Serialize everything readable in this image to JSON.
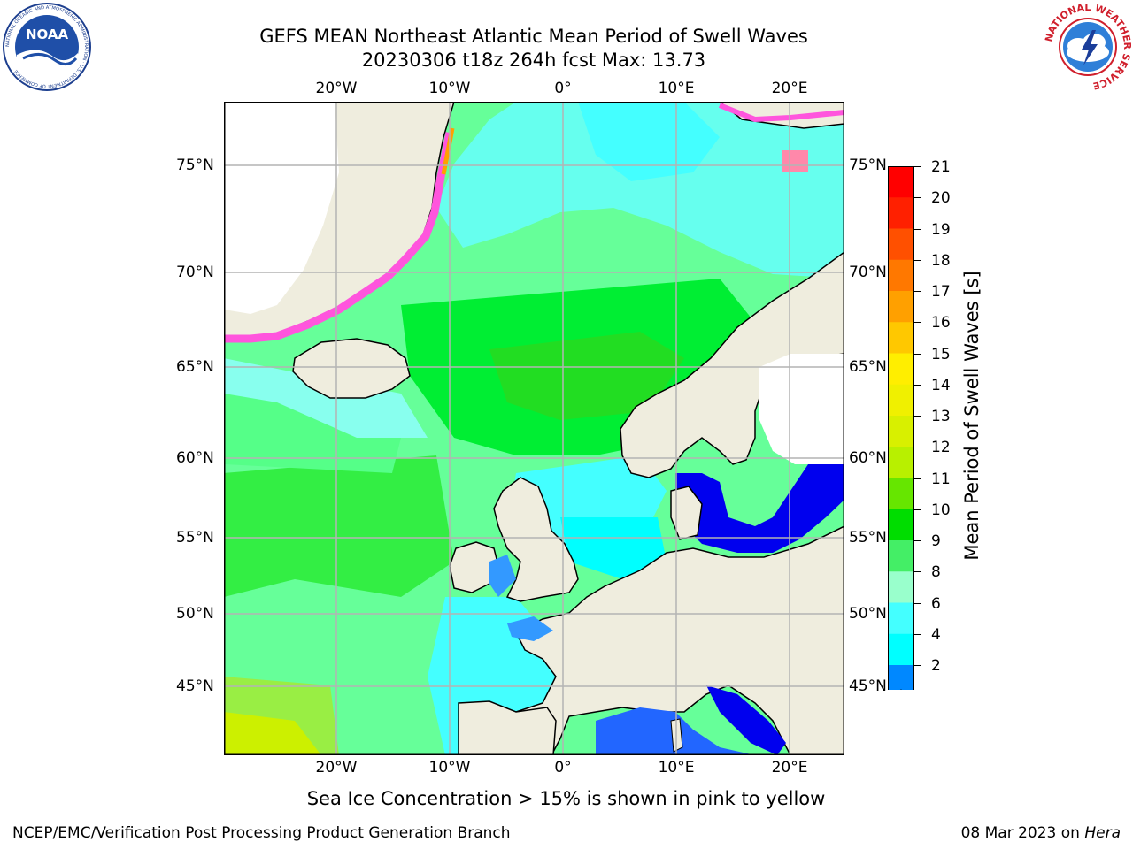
{
  "title": {
    "line1": "GEFS MEAN Northeast Atlantic Mean Period of Swell Waves",
    "line2": "20230306 t18z 264h fcst   Max: 13.73"
  },
  "logos": {
    "left_icon": "noaa-logo-icon",
    "left_text": "NOAA",
    "left_ring_text": "NATIONAL OCEANIC AND ATMOSPHERIC ADMINISTRATION · U.S. DEPARTMENT OF COMMERCE",
    "right_icon": "national-weather-service-logo-icon",
    "right_ring_text": "NATIONAL WEATHER SERVICE"
  },
  "map": {
    "lon_labels_top": [
      "20°W",
      "10°W",
      "0°",
      "10°E",
      "20°E"
    ],
    "lon_labels_bottom": [
      "20°W",
      "10°W",
      "0°",
      "10°E",
      "20°E"
    ],
    "lat_labels_left": [
      "75°N",
      "70°N",
      "65°N",
      "60°N",
      "55°N",
      "50°N",
      "45°N"
    ],
    "lat_labels_right": [
      "75°N",
      "70°N",
      "65°N",
      "60°N",
      "55°N",
      "50°N",
      "45°N"
    ],
    "land_color": "#efedde",
    "grid_color": "#b4b4b4"
  },
  "colorbar": {
    "title": "Mean Period of Swell Waves [s]",
    "tick_labels": [
      "21",
      "20",
      "19",
      "18",
      "17",
      "16",
      "15",
      "14",
      "13",
      "12",
      "11",
      "10",
      "9",
      "8",
      "6",
      "4",
      "2"
    ],
    "colors_top_to_bottom": [
      "#ff0000",
      "#ff2000",
      "#ff5000",
      "#ff7800",
      "#ffa000",
      "#ffc800",
      "#ffee00",
      "#f0f000",
      "#d8f000",
      "#b8f000",
      "#66e600",
      "#00dd00",
      "#44ee66",
      "#99ffcc",
      "#44ffff",
      "#00ffff",
      "#0088ff"
    ],
    "extend_color": "#0000ee"
  },
  "ice_note": "Sea Ice Concentration > 15% is shown in pink to yellow",
  "footer": {
    "left": "NCEP/EMC/Verification Post Processing Product Generation Branch",
    "right_prefix": "08 Mar 2023 on ",
    "right_host": "Hera"
  }
}
